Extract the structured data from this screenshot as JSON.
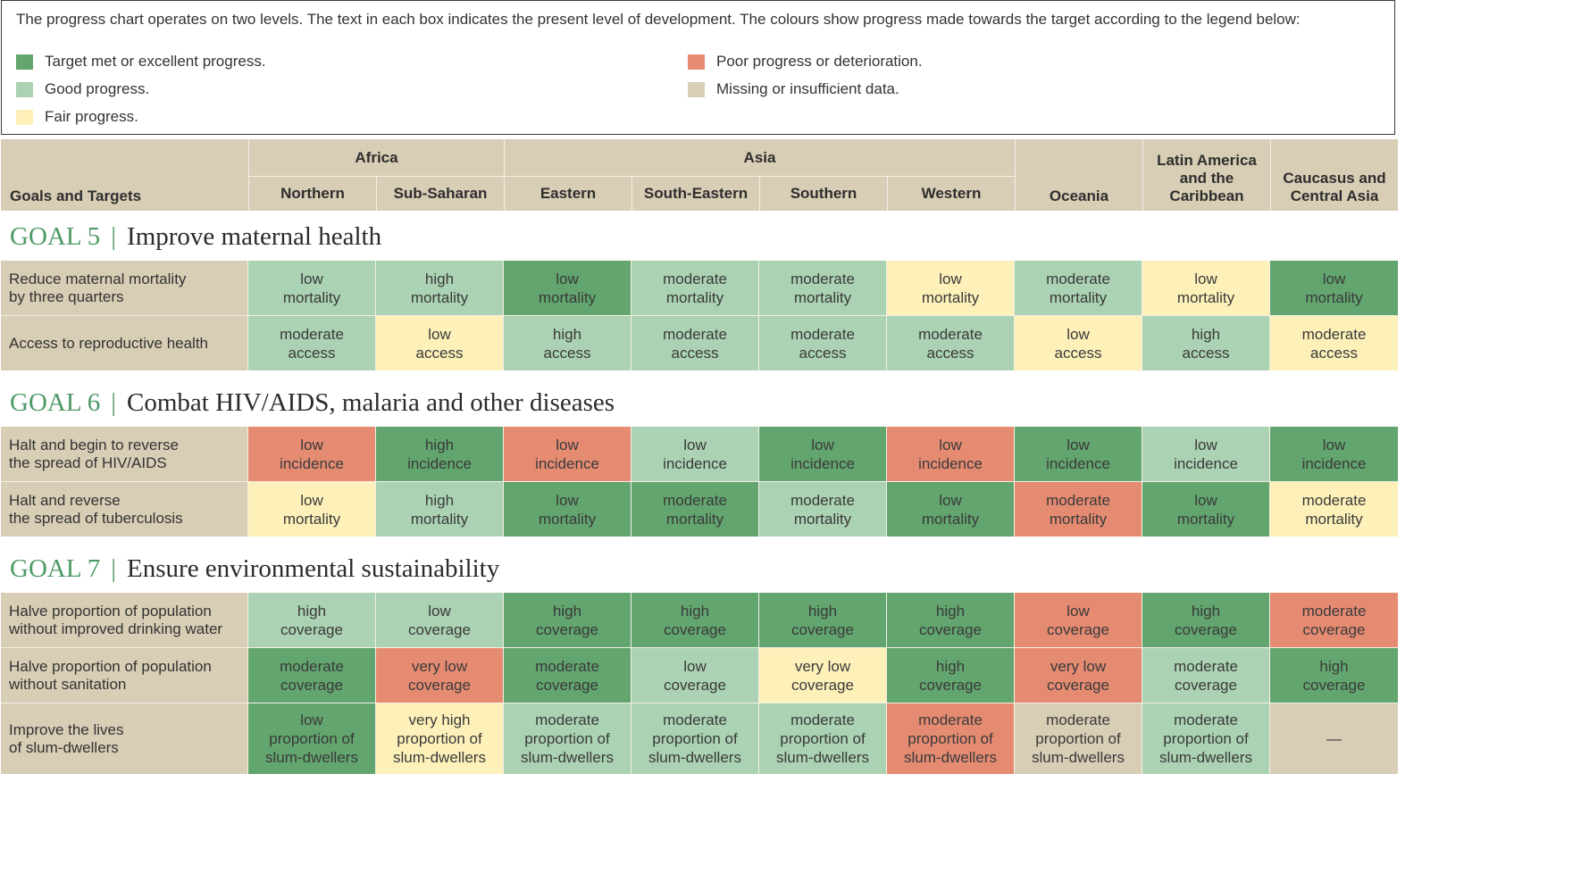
{
  "colors": {
    "excellent": "#62a56e",
    "good": "#abd2b2",
    "fair": "#fdf1b9",
    "poor": "#e58b72",
    "missing": "#d8cdb5"
  },
  "legend": {
    "intro": "The progress chart operates on two levels. The text in each box indicates the present level of development. The colours show progress made towards the target according to the legend below:",
    "items": [
      {
        "key": "excellent",
        "label": "Target met or excellent progress."
      },
      {
        "key": "good",
        "label": "Good progress."
      },
      {
        "key": "fair",
        "label": "Fair progress."
      },
      {
        "key": "poor",
        "label": "Poor progress or deterioration."
      },
      {
        "key": "missing",
        "label": "Missing or insufficient data."
      }
    ]
  },
  "header": {
    "goals_and_targets": "Goals and Targets",
    "africa": "Africa",
    "asia": "Asia",
    "regions": [
      "Northern",
      "Sub-Saharan",
      "Eastern",
      "South-Eastern",
      "Southern",
      "Western",
      "Oceania",
      "Latin America\nand the\nCaribbean",
      "Caucasus and\nCentral Asia"
    ]
  },
  "goals": [
    {
      "number": "GOAL 5",
      "separator": "|",
      "title": "Improve maternal health",
      "rows": [
        {
          "label": "Reduce maternal mortality\nby three quarters",
          "cells": [
            [
              "low\nmortality",
              "good"
            ],
            [
              "high\nmortality",
              "good"
            ],
            [
              "low\nmortality",
              "excellent"
            ],
            [
              "moderate\nmortality",
              "good"
            ],
            [
              "moderate\nmortality",
              "good"
            ],
            [
              "low\nmortality",
              "fair"
            ],
            [
              "moderate\nmortality",
              "good"
            ],
            [
              "low\nmortality",
              "fair"
            ],
            [
              "low\nmortality",
              "excellent"
            ]
          ]
        },
        {
          "label": "Access to reproductive health",
          "cells": [
            [
              "moderate\naccess",
              "good"
            ],
            [
              "low\naccess",
              "fair"
            ],
            [
              "high\naccess",
              "good"
            ],
            [
              "moderate\naccess",
              "good"
            ],
            [
              "moderate\naccess",
              "good"
            ],
            [
              "moderate\naccess",
              "good"
            ],
            [
              "low\naccess",
              "fair"
            ],
            [
              "high\naccess",
              "good"
            ],
            [
              "moderate\naccess",
              "fair"
            ]
          ]
        }
      ]
    },
    {
      "number": "GOAL 6",
      "separator": "|",
      "title": "Combat HIV/AIDS, malaria and other diseases",
      "rows": [
        {
          "label": "Halt and begin to reverse\nthe spread of HIV/AIDS",
          "cells": [
            [
              "low\nincidence",
              "poor"
            ],
            [
              "high\nincidence",
              "excellent"
            ],
            [
              "low\nincidence",
              "poor"
            ],
            [
              "low\nincidence",
              "good"
            ],
            [
              "low\nincidence",
              "excellent"
            ],
            [
              "low\nincidence",
              "poor"
            ],
            [
              "low\nincidence",
              "excellent"
            ],
            [
              "low\nincidence",
              "good"
            ],
            [
              "low\nincidence",
              "excellent"
            ]
          ]
        },
        {
          "label": "Halt and reverse\nthe spread of tuberculosis",
          "cells": [
            [
              "low\nmortality",
              "fair"
            ],
            [
              "high\nmortality",
              "good"
            ],
            [
              "low\nmortality",
              "excellent"
            ],
            [
              "moderate\nmortality",
              "excellent"
            ],
            [
              "moderate\nmortality",
              "good"
            ],
            [
              "low\nmortality",
              "excellent"
            ],
            [
              "moderate\nmortality",
              "poor"
            ],
            [
              "low\nmortality",
              "excellent"
            ],
            [
              "moderate\nmortality",
              "fair"
            ]
          ]
        }
      ]
    },
    {
      "number": "GOAL 7",
      "separator": "|",
      "title": "Ensure environmental sustainability",
      "rows": [
        {
          "label": "Halve proportion of population\nwithout improved drinking water",
          "cells": [
            [
              "high\ncoverage",
              "good"
            ],
            [
              "low\ncoverage",
              "good"
            ],
            [
              "high\ncoverage",
              "excellent"
            ],
            [
              "high\ncoverage",
              "excellent"
            ],
            [
              "high\ncoverage",
              "excellent"
            ],
            [
              "high\ncoverage",
              "excellent"
            ],
            [
              "low\ncoverage",
              "poor"
            ],
            [
              "high\ncoverage",
              "excellent"
            ],
            [
              "moderate\ncoverage",
              "poor"
            ]
          ]
        },
        {
          "label": "Halve proportion of population\nwithout sanitation",
          "cells": [
            [
              "moderate\ncoverage",
              "excellent"
            ],
            [
              "very low\ncoverage",
              "poor"
            ],
            [
              "moderate\ncoverage",
              "excellent"
            ],
            [
              "low\ncoverage",
              "good"
            ],
            [
              "very low\ncoverage",
              "fair"
            ],
            [
              "high\ncoverage",
              "excellent"
            ],
            [
              "very low\ncoverage",
              "poor"
            ],
            [
              "moderate\ncoverage",
              "good"
            ],
            [
              "high\ncoverage",
              "excellent"
            ]
          ]
        },
        {
          "label": "Improve the lives\nof slum-dwellers",
          "cells": [
            [
              "low\nproportion of\nslum-dwellers",
              "excellent"
            ],
            [
              "very high\nproportion of\nslum-dwellers",
              "fair"
            ],
            [
              "moderate\nproportion of\nslum-dwellers",
              "good"
            ],
            [
              "moderate\nproportion of\nslum-dwellers",
              "good"
            ],
            [
              "moderate\nproportion of\nslum-dwellers",
              "good"
            ],
            [
              "moderate\nproportion of\nslum-dwellers",
              "poor"
            ],
            [
              "moderate\nproportion of\nslum-dwellers",
              "missing"
            ],
            [
              "moderate\nproportion of\nslum-dwellers",
              "good"
            ],
            [
              "—",
              "missing"
            ]
          ]
        }
      ]
    }
  ]
}
